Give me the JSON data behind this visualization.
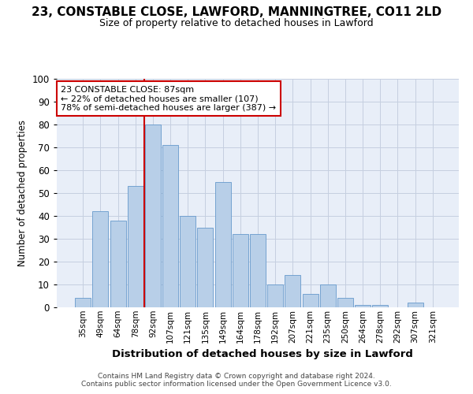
{
  "title": "23, CONSTABLE CLOSE, LAWFORD, MANNINGTREE, CO11 2LD",
  "subtitle": "Size of property relative to detached houses in Lawford",
  "xlabel": "Distribution of detached houses by size in Lawford",
  "ylabel": "Number of detached properties",
  "categories": [
    "35sqm",
    "49sqm",
    "64sqm",
    "78sqm",
    "92sqm",
    "107sqm",
    "121sqm",
    "135sqm",
    "149sqm",
    "164sqm",
    "178sqm",
    "192sqm",
    "207sqm",
    "221sqm",
    "235sqm",
    "250sqm",
    "264sqm",
    "278sqm",
    "292sqm",
    "307sqm",
    "321sqm"
  ],
  "values": [
    4,
    42,
    38,
    53,
    80,
    71,
    40,
    35,
    55,
    32,
    32,
    10,
    14,
    6,
    10,
    4,
    1,
    1,
    0,
    2,
    0
  ],
  "bar_color": "#b8cfe8",
  "bar_edge_color": "#6699cc",
  "annotation_text": "23 CONSTABLE CLOSE: 87sqm\n← 22% of detached houses are smaller (107)\n78% of semi-detached houses are larger (387) →",
  "annotation_box_edge": "#cc0000",
  "red_line_bar_index": 4,
  "red_line_color": "#cc0000",
  "background_color": "#e8eef8",
  "grid_color": "#c5cfe0",
  "footer1": "Contains HM Land Registry data © Crown copyright and database right 2024.",
  "footer2": "Contains public sector information licensed under the Open Government Licence v3.0.",
  "ylim": [
    0,
    100
  ],
  "yticks": [
    0,
    10,
    20,
    30,
    40,
    50,
    60,
    70,
    80,
    90,
    100
  ]
}
